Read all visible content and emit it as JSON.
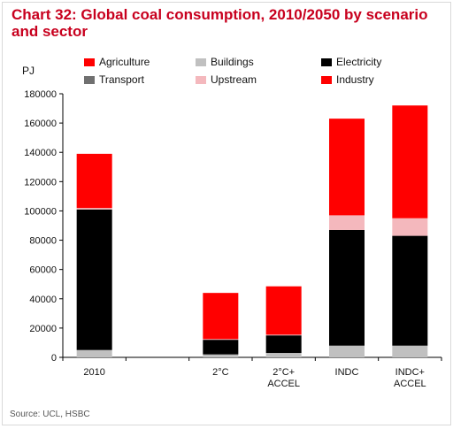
{
  "chart_data": {
    "type": "bar",
    "stacked": true,
    "title": "Chart 32: Global coal consumption, 2010/2050 by scenario and sector",
    "ylabel": "PJ",
    "ylim": [
      0,
      180000
    ],
    "yticks": [
      0,
      20000,
      40000,
      60000,
      80000,
      100000,
      120000,
      140000,
      160000,
      180000
    ],
    "ytick_labels": [
      "0",
      "20000",
      "40000",
      "60000",
      "80000",
      "100000",
      "120000",
      "140000",
      "160000",
      "180000"
    ],
    "categories": [
      {
        "lines": [
          "2010"
        ]
      },
      {
        "lines": [
          "2°C"
        ]
      },
      {
        "lines": [
          "2°C+",
          "ACCEL"
        ]
      },
      {
        "lines": [
          "INDC"
        ]
      },
      {
        "lines": [
          "INDC+",
          "ACCEL"
        ]
      }
    ],
    "category_slots": [
      0,
      2,
      3,
      4,
      5
    ],
    "series": [
      {
        "name": "Buildings",
        "color": "#c0c0c0",
        "values": [
          5000,
          2000,
          3000,
          8000,
          8000
        ]
      },
      {
        "name": "Transport",
        "color": "#707070",
        "values": [
          0,
          0,
          0,
          0,
          0
        ]
      },
      {
        "name": "Electricity",
        "color": "#000000",
        "values": [
          96000,
          10000,
          12000,
          79000,
          75000
        ]
      },
      {
        "name": "Upstream",
        "color": "#f4b8bd",
        "values": [
          1000,
          500,
          500,
          10000,
          12000
        ]
      },
      {
        "name": "Agriculture",
        "color": "#ff0000",
        "values": [
          0,
          0,
          0,
          0,
          0
        ]
      },
      {
        "name": "Industry",
        "color": "#ff0000",
        "values": [
          37000,
          31500,
          33000,
          66000,
          77000
        ]
      }
    ],
    "legend": [
      {
        "name": "Agriculture",
        "color": "#ff0000"
      },
      {
        "name": "Buildings",
        "color": "#c0c0c0"
      },
      {
        "name": "Electricity",
        "color": "#000000"
      },
      {
        "name": "Transport",
        "color": "#707070"
      },
      {
        "name": "Upstream",
        "color": "#f4b8bd"
      },
      {
        "name": "Industry",
        "color": "#ff0000"
      }
    ],
    "legend_position": "top",
    "grid": false,
    "source": "Source: UCL, HSBC"
  }
}
